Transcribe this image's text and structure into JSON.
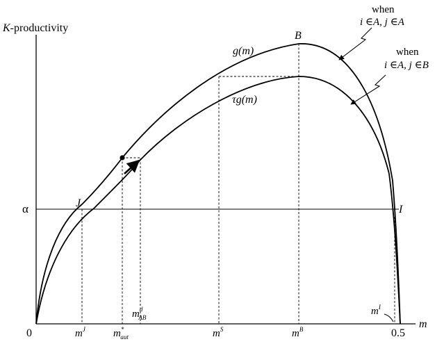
{
  "figure": {
    "y_axis_label_italic": "K",
    "y_axis_label_rest": "-productivity",
    "x_axis_label": "m",
    "origin_label": "0",
    "x_end_label": "0.5",
    "alpha_label": "α",
    "point_J_label": "J",
    "point_B_label": "B",
    "point_I_label": "I",
    "curve_g_label": "g(m)",
    "curve_tau_label": "τg(m)",
    "legend_top_when": "when",
    "legend_top_cond": "i ∈A,  j ∈A",
    "legend_bottom_when": "when",
    "legend_bottom_cond": "i ∈A,  j ∈B",
    "tick_mJ": {
      "base": "m",
      "sup": "J"
    },
    "tick_maut": {
      "base": "m",
      "sup": "*",
      "sub": "aut"
    },
    "tick_mABd": {
      "base": "m",
      "sup": "d",
      "sub": "AB"
    },
    "tick_mS": {
      "base": "m",
      "sup": "S"
    },
    "tick_mB": {
      "base": "m",
      "sup": "B"
    },
    "tick_mI": {
      "base": "m",
      "sup": "I"
    }
  }
}
